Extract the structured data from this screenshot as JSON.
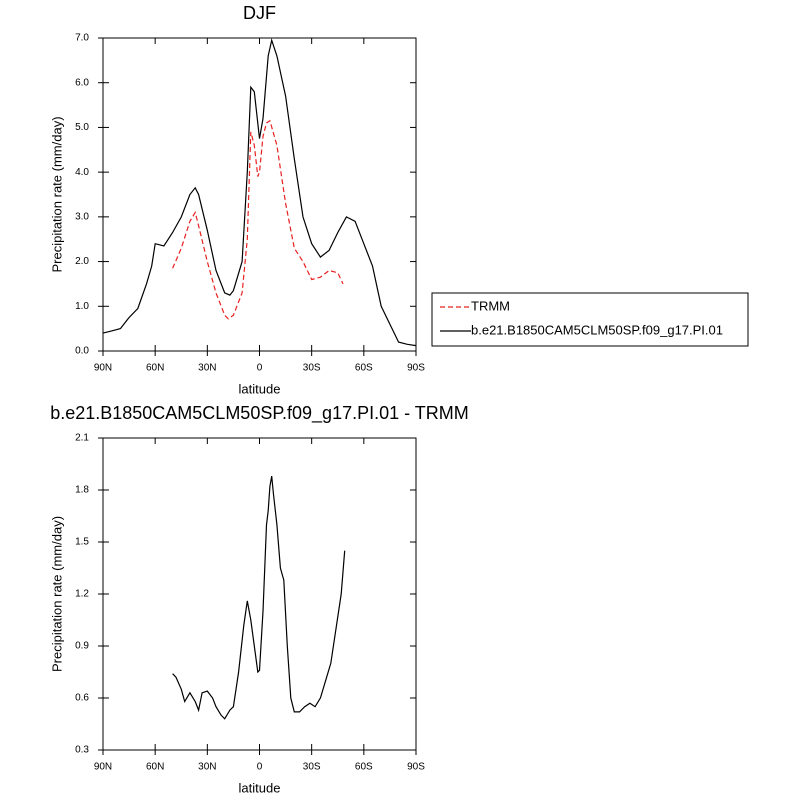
{
  "chart_data": [
    {
      "type": "line",
      "title": "DJF",
      "x_label": "latitude",
      "y_label": "Precipitation rate (mm/day)",
      "xlim": [
        90,
        -90
      ],
      "xticks": [
        {
          "value": 90,
          "label": "90N"
        },
        {
          "value": 60,
          "label": "60N"
        },
        {
          "value": 30,
          "label": "30N"
        },
        0,
        {
          "value": -30,
          "label": "30S"
        },
        {
          "value": -60,
          "label": "60S"
        },
        {
          "value": -90,
          "label": "90S"
        }
      ],
      "ylim": [
        0,
        7
      ],
      "yticks": [
        {
          "value": 0,
          "label": "0.0"
        },
        {
          "value": 1,
          "label": "1.0"
        },
        {
          "value": 2,
          "label": "2.0"
        },
        {
          "value": 3,
          "label": "3.0"
        },
        {
          "value": 4,
          "label": "4.0"
        },
        {
          "value": 5,
          "label": "5.0"
        },
        {
          "value": 6,
          "label": "6.0"
        },
        {
          "value": 7,
          "label": "7.0"
        }
      ],
      "legend": "right",
      "series": [
        {
          "name": "TRMM",
          "color": "#e8201f",
          "linestyle": "dashed",
          "x": [
            50,
            45,
            40,
            37,
            35,
            30,
            25,
            20,
            18,
            15,
            10,
            7,
            5,
            3,
            1,
            0,
            -2,
            -4,
            -6,
            -10,
            -15,
            -20,
            -25,
            -30,
            -35,
            -40,
            -45,
            -48
          ],
          "values": [
            1.85,
            2.3,
            2.9,
            3.1,
            2.8,
            2.0,
            1.3,
            0.8,
            0.72,
            0.8,
            1.3,
            2.5,
            4.9,
            4.6,
            3.9,
            4.0,
            4.8,
            5.1,
            5.15,
            4.6,
            3.3,
            2.3,
            2.0,
            1.6,
            1.65,
            1.8,
            1.75,
            1.5
          ]
        },
        {
          "name": "b.e21.B1850CAM5CLM50SP.f09_g17.PI.01",
          "color": "#000000",
          "linestyle": "solid",
          "x": [
            90,
            85,
            80,
            75,
            70,
            65,
            62,
            60,
            55,
            50,
            45,
            40,
            37,
            35,
            30,
            25,
            20,
            17,
            15,
            10,
            7,
            5,
            3,
            0,
            -2,
            -5,
            -7,
            -10,
            -15,
            -20,
            -25,
            -30,
            -35,
            -40,
            -45,
            -50,
            -55,
            -60,
            -65,
            -70,
            -75,
            -80,
            -85,
            -90
          ],
          "values": [
            0.4,
            0.45,
            0.5,
            0.75,
            0.95,
            1.5,
            1.9,
            2.4,
            2.35,
            2.65,
            3.0,
            3.5,
            3.65,
            3.5,
            2.7,
            1.8,
            1.3,
            1.25,
            1.35,
            2.0,
            4.0,
            5.9,
            5.8,
            4.75,
            5.2,
            6.6,
            6.95,
            6.6,
            5.7,
            4.3,
            3.0,
            2.4,
            2.1,
            2.25,
            2.65,
            3.0,
            2.9,
            2.4,
            1.9,
            1.0,
            0.6,
            0.2,
            0.15,
            0.12
          ]
        }
      ]
    },
    {
      "type": "line",
      "title": "b.e21.B1850CAM5CLM50SP.f09_g17.PI.01 - TRMM",
      "x_label": "latitude",
      "y_label": "Precipitation rate (mm/day)",
      "xlim": [
        90,
        -90
      ],
      "xticks": [
        {
          "value": 90,
          "label": "90N"
        },
        {
          "value": 60,
          "label": "60N"
        },
        {
          "value": 30,
          "label": "30N"
        },
        0,
        {
          "value": -30,
          "label": "30S"
        },
        {
          "value": -60,
          "label": "60S"
        },
        {
          "value": -90,
          "label": "90S"
        }
      ],
      "ylim": [
        0.3,
        2.1
      ],
      "yticks": [
        0.3,
        0.6,
        0.9,
        1.2,
        1.5,
        1.8,
        2.1
      ],
      "series": [
        {
          "color": "#000000",
          "linestyle": "solid",
          "x": [
            50,
            48,
            45,
            43,
            40,
            37,
            35,
            33,
            30,
            27,
            25,
            22,
            20,
            17,
            15,
            12,
            9,
            7,
            5,
            3,
            1,
            0,
            -2,
            -4,
            -5,
            -6,
            -7,
            -8,
            -10,
            -12,
            -14,
            -16,
            -18,
            -20,
            -23,
            -26,
            -29,
            -32,
            -35,
            -38,
            -41,
            -44,
            -47,
            -49
          ],
          "values": [
            0.74,
            0.72,
            0.65,
            0.58,
            0.63,
            0.58,
            0.53,
            0.63,
            0.64,
            0.6,
            0.55,
            0.5,
            0.48,
            0.53,
            0.55,
            0.75,
            1.02,
            1.16,
            1.05,
            0.9,
            0.75,
            0.76,
            1.1,
            1.6,
            1.68,
            1.82,
            1.88,
            1.78,
            1.6,
            1.35,
            1.28,
            0.9,
            0.6,
            0.52,
            0.52,
            0.55,
            0.57,
            0.55,
            0.6,
            0.7,
            0.8,
            1.0,
            1.2,
            1.45
          ]
        }
      ]
    }
  ]
}
